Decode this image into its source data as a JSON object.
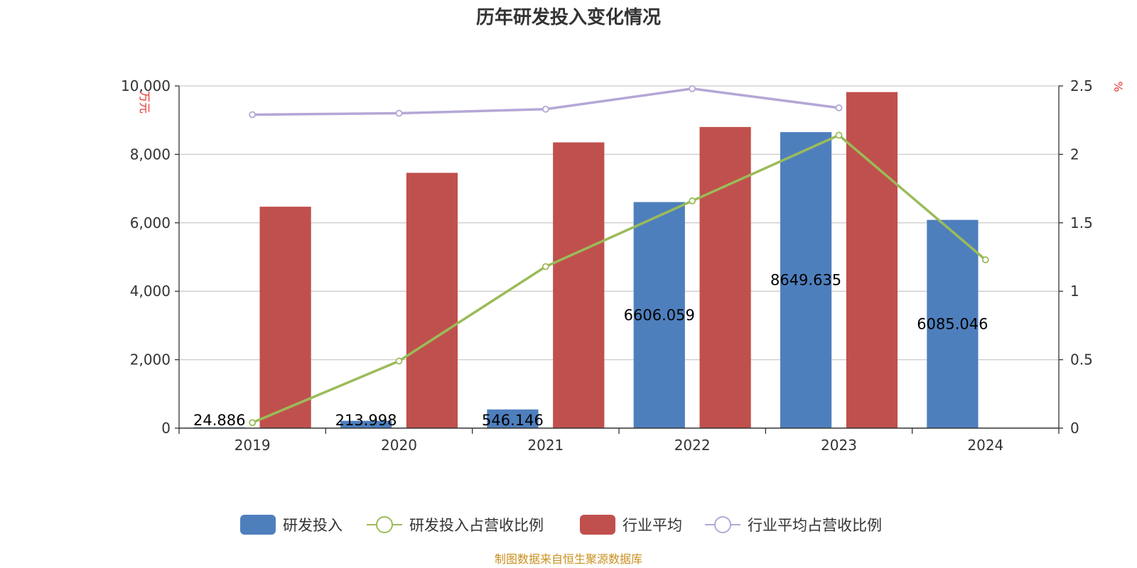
{
  "chart_data": {
    "type": "bar",
    "title": "历年研发投入变化情况",
    "categories": [
      "2019",
      "2020",
      "2021",
      "2022",
      "2023",
      "2024"
    ],
    "y_left": {
      "unit": "万元",
      "ylim": [
        0,
        10000
      ],
      "ticks": [
        "0",
        "2,000",
        "4,000",
        "6,000",
        "8,000",
        "10,000"
      ],
      "tick_values": [
        0,
        2000,
        4000,
        6000,
        8000,
        10000
      ]
    },
    "y_right": {
      "unit": "%",
      "ylim": [
        0,
        2.5
      ],
      "ticks": [
        "0",
        "0.5",
        "1",
        "1.5",
        "2",
        "2.5"
      ],
      "tick_values": [
        0,
        0.5,
        1,
        1.5,
        2,
        2.5
      ]
    },
    "series": [
      {
        "name": "研发投入",
        "kind": "bar",
        "axis": "left",
        "color": "#4e7fbd",
        "values": [
          24.886,
          213.998,
          546.146,
          6606.059,
          8649.635,
          6085.046
        ],
        "labels": [
          "24.886",
          "213.998",
          "546.146",
          "6606.059",
          "8649.635",
          "6085.046"
        ]
      },
      {
        "name": "研发投入占营收比例",
        "kind": "line",
        "axis": "right",
        "color": "#9bbb59",
        "values": [
          0.04,
          0.49,
          1.18,
          1.66,
          2.14,
          1.23
        ]
      },
      {
        "name": "行业平均",
        "kind": "bar",
        "axis": "left",
        "color": "#c0504d",
        "values": [
          6470,
          7460,
          8350,
          8800,
          9820,
          null
        ]
      },
      {
        "name": "行业平均占营收比例",
        "kind": "line",
        "axis": "right",
        "color": "#b4a7d6",
        "values": [
          2.29,
          2.3,
          2.33,
          2.48,
          2.34,
          null
        ]
      }
    ],
    "grid": true,
    "legend_position": "bottom"
  },
  "source": "制图数据来自恒生聚源数据库"
}
